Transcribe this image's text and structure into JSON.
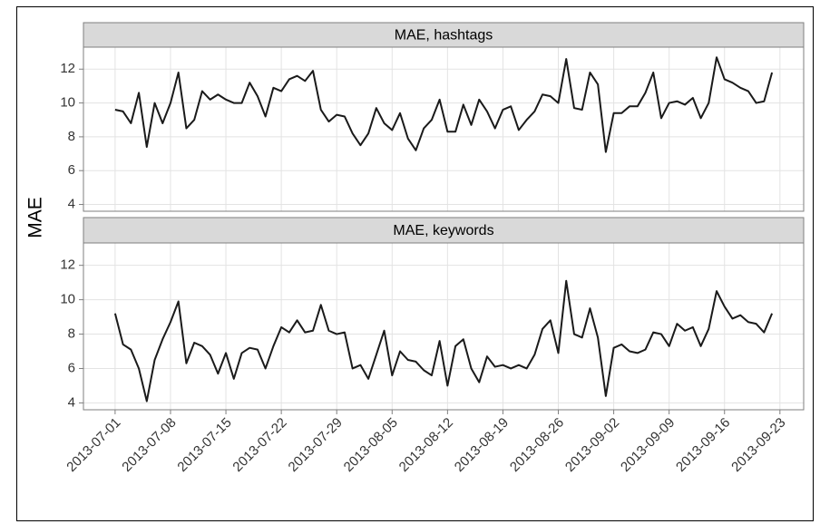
{
  "chart_data": {
    "type": "line",
    "ylabel": "MAE",
    "color": "#1a1a1a",
    "grid": true,
    "x": [
      "2013-07-01",
      "2013-07-02",
      "2013-07-03",
      "2013-07-04",
      "2013-07-05",
      "2013-07-06",
      "2013-07-07",
      "2013-07-08",
      "2013-07-09",
      "2013-07-10",
      "2013-07-11",
      "2013-07-12",
      "2013-07-13",
      "2013-07-14",
      "2013-07-15",
      "2013-07-16",
      "2013-07-17",
      "2013-07-18",
      "2013-07-19",
      "2013-07-20",
      "2013-07-21",
      "2013-07-22",
      "2013-07-23",
      "2013-07-24",
      "2013-07-25",
      "2013-07-26",
      "2013-07-27",
      "2013-07-28",
      "2013-07-29",
      "2013-07-30",
      "2013-07-31",
      "2013-08-01",
      "2013-08-02",
      "2013-08-03",
      "2013-08-04",
      "2013-08-05",
      "2013-08-06",
      "2013-08-07",
      "2013-08-08",
      "2013-08-09",
      "2013-08-10",
      "2013-08-11",
      "2013-08-12",
      "2013-08-13",
      "2013-08-14",
      "2013-08-15",
      "2013-08-16",
      "2013-08-17",
      "2013-08-18",
      "2013-08-19",
      "2013-08-20",
      "2013-08-21",
      "2013-08-22",
      "2013-08-23",
      "2013-08-24",
      "2013-08-25",
      "2013-08-26",
      "2013-08-27",
      "2013-08-28",
      "2013-08-29",
      "2013-08-30",
      "2013-08-31",
      "2013-09-01",
      "2013-09-02",
      "2013-09-03",
      "2013-09-04",
      "2013-09-05",
      "2013-09-06",
      "2013-09-07",
      "2013-09-08",
      "2013-09-09",
      "2013-09-10",
      "2013-09-11",
      "2013-09-12",
      "2013-09-13",
      "2013-09-14",
      "2013-09-15",
      "2013-09-16",
      "2013-09-17",
      "2013-09-18",
      "2013-09-19",
      "2013-09-20",
      "2013-09-21",
      "2013-09-22"
    ],
    "xlim": [
      "2013-06-27",
      "2013-09-26"
    ],
    "xticks": [
      "2013-07-01",
      "2013-07-08",
      "2013-07-15",
      "2013-07-22",
      "2013-07-29",
      "2013-08-05",
      "2013-08-12",
      "2013-08-19",
      "2013-08-26",
      "2013-09-02",
      "2013-09-09",
      "2013-09-16",
      "2013-09-23"
    ],
    "ylim": [
      3.6,
      13.3
    ],
    "yticks": [
      4,
      6,
      8,
      10,
      12
    ],
    "panels": [
      {
        "title": "MAE, hashtags",
        "values": [
          9.6,
          9.5,
          8.8,
          10.6,
          7.4,
          10.0,
          8.8,
          10.0,
          11.8,
          8.5,
          9.0,
          10.7,
          10.2,
          10.5,
          10.2,
          10.0,
          10.0,
          11.2,
          10.4,
          9.2,
          10.9,
          10.7,
          11.4,
          11.6,
          11.3,
          11.9,
          9.6,
          8.9,
          9.3,
          9.2,
          8.2,
          7.5,
          8.2,
          9.7,
          8.8,
          8.4,
          9.4,
          7.9,
          7.2,
          8.5,
          9.0,
          10.2,
          8.3,
          8.3,
          9.9,
          8.7,
          10.2,
          9.5,
          8.5,
          9.6,
          9.8,
          8.4,
          9.0,
          9.5,
          10.5,
          10.4,
          10.0,
          12.6,
          9.7,
          9.6,
          11.8,
          11.1,
          7.1,
          9.4,
          9.4,
          9.8,
          9.8,
          10.6,
          11.8,
          9.1,
          10.0,
          10.1,
          9.9,
          10.3,
          9.1,
          10.0,
          12.7,
          11.4,
          11.2,
          10.9,
          10.7,
          10.0,
          10.1,
          11.8
        ]
      },
      {
        "title": "MAE, keywords",
        "values": [
          9.2,
          7.4,
          7.1,
          6.0,
          4.1,
          6.5,
          7.7,
          8.7,
          9.9,
          6.3,
          7.5,
          7.3,
          6.8,
          5.7,
          6.9,
          5.4,
          6.9,
          7.2,
          7.1,
          6.0,
          7.3,
          8.4,
          8.1,
          8.8,
          8.1,
          8.2,
          9.7,
          8.2,
          8.0,
          8.1,
          6.0,
          6.2,
          5.4,
          6.8,
          8.2,
          5.6,
          7.0,
          6.5,
          6.4,
          5.9,
          5.6,
          7.6,
          5.0,
          7.3,
          7.7,
          6.0,
          5.2,
          6.7,
          6.1,
          6.2,
          6.0,
          6.2,
          6.0,
          6.8,
          8.3,
          8.8,
          6.9,
          11.1,
          8.0,
          7.8,
          9.5,
          7.8,
          4.4,
          7.2,
          7.4,
          7.0,
          6.9,
          7.1,
          8.1,
          8.0,
          7.3,
          8.6,
          8.2,
          8.4,
          7.3,
          8.3,
          10.5,
          9.6,
          8.9,
          9.1,
          8.7,
          8.6,
          8.1,
          9.2
        ]
      }
    ]
  }
}
